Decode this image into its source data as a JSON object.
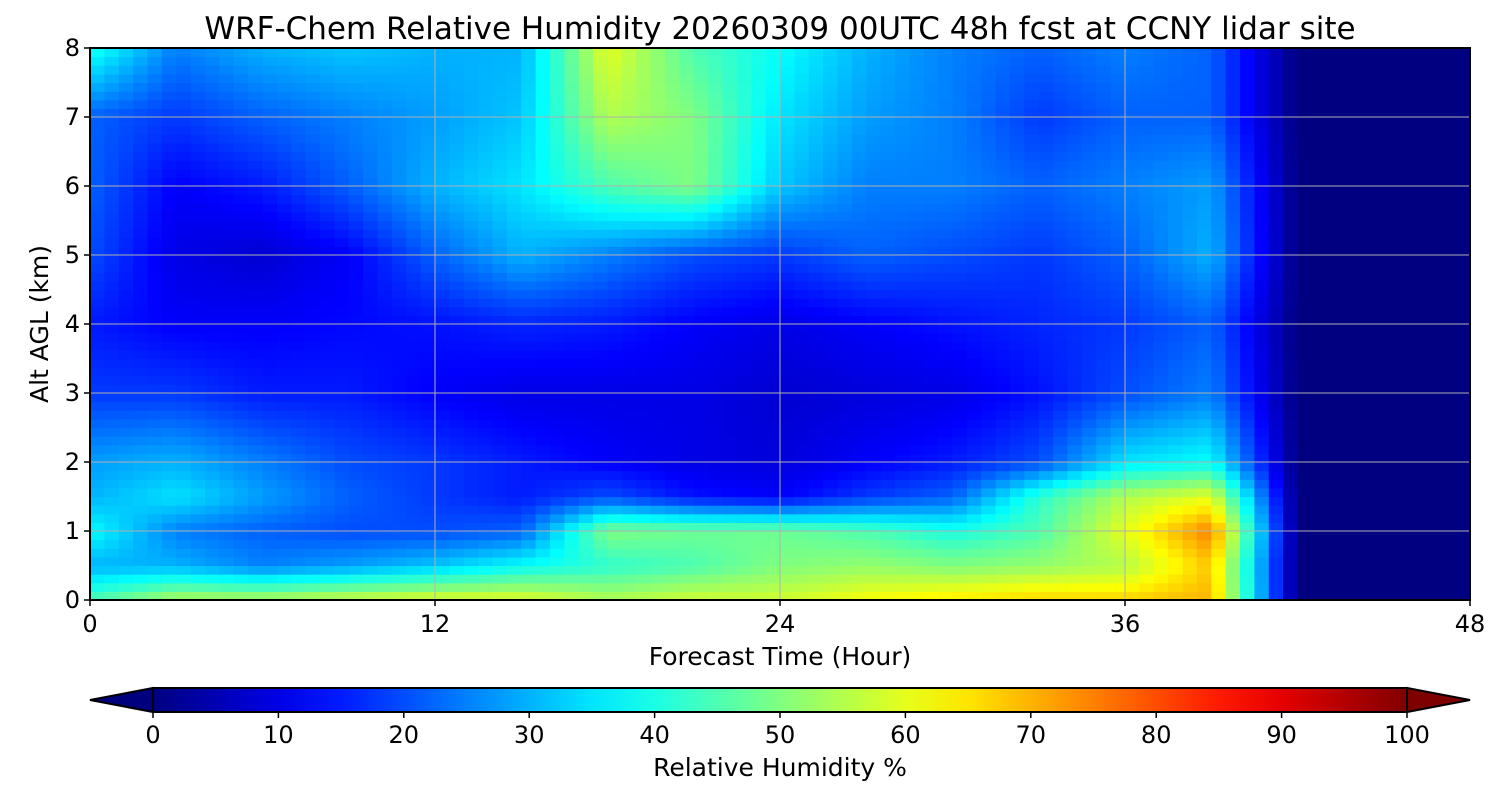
{
  "chart_data": {
    "type": "heatmap",
    "title": "WRF-Chem Relative Humidity 20260309 00UTC 48h fcst at CCNY lidar site",
    "xlabel": "Forecast Time (Hour)",
    "ylabel": "Alt AGL (km)",
    "x_ticks": [
      "0",
      "12",
      "24",
      "36",
      "48"
    ],
    "y_ticks": [
      "0",
      "1",
      "2",
      "3",
      "4",
      "5",
      "6",
      "7",
      "8"
    ],
    "xlim": [
      0,
      48
    ],
    "ylim": [
      0,
      8
    ],
    "grid": true,
    "colorbar": {
      "label": "Relative Humidity %",
      "ticks": [
        "0",
        "10",
        "20",
        "30",
        "40",
        "50",
        "60",
        "70",
        "80",
        "90",
        "100"
      ],
      "range": [
        0,
        100
      ],
      "extend": "both",
      "colormap": "jet"
    },
    "x_hours": [
      0,
      3,
      6,
      9,
      12,
      15,
      18,
      21,
      24,
      27,
      30,
      33,
      36,
      39,
      42,
      45,
      48
    ],
    "y_km": [
      0,
      0.5,
      1,
      1.5,
      2,
      3,
      4,
      5,
      6,
      7,
      8
    ],
    "rh_percent": [
      [
        45,
        55,
        55,
        58,
        60,
        60,
        55,
        58,
        58,
        62,
        65,
        67,
        67,
        70,
        0,
        0,
        0
      ],
      [
        30,
        30,
        25,
        28,
        32,
        38,
        42,
        45,
        50,
        52,
        50,
        52,
        55,
        68,
        0,
        0,
        0
      ],
      [
        38,
        25,
        22,
        20,
        20,
        22,
        50,
        48,
        48,
        45,
        40,
        45,
        60,
        75,
        0,
        0,
        0
      ],
      [
        30,
        35,
        28,
        22,
        18,
        15,
        20,
        14,
        12,
        18,
        22,
        42,
        55,
        60,
        0,
        0,
        0
      ],
      [
        28,
        30,
        25,
        20,
        18,
        15,
        12,
        10,
        9,
        12,
        15,
        20,
        35,
        38,
        0,
        0,
        0
      ],
      [
        18,
        18,
        15,
        15,
        12,
        10,
        10,
        10,
        8,
        9,
        10,
        14,
        20,
        25,
        0,
        0,
        0
      ],
      [
        15,
        12,
        12,
        13,
        14,
        16,
        15,
        12,
        10,
        12,
        14,
        16,
        18,
        22,
        0,
        0,
        0
      ],
      [
        20,
        10,
        8,
        12,
        22,
        30,
        25,
        20,
        18,
        22,
        20,
        18,
        22,
        30,
        0,
        0,
        0
      ],
      [
        22,
        12,
        15,
        22,
        30,
        35,
        45,
        50,
        32,
        25,
        25,
        22,
        25,
        28,
        0,
        0,
        0
      ],
      [
        22,
        18,
        22,
        25,
        28,
        32,
        55,
        50,
        35,
        28,
        25,
        18,
        22,
        22,
        0,
        0,
        0
      ],
      [
        40,
        25,
        30,
        32,
        30,
        30,
        60,
        45,
        38,
        30,
        25,
        22,
        25,
        22,
        0,
        0,
        0
      ]
    ]
  }
}
